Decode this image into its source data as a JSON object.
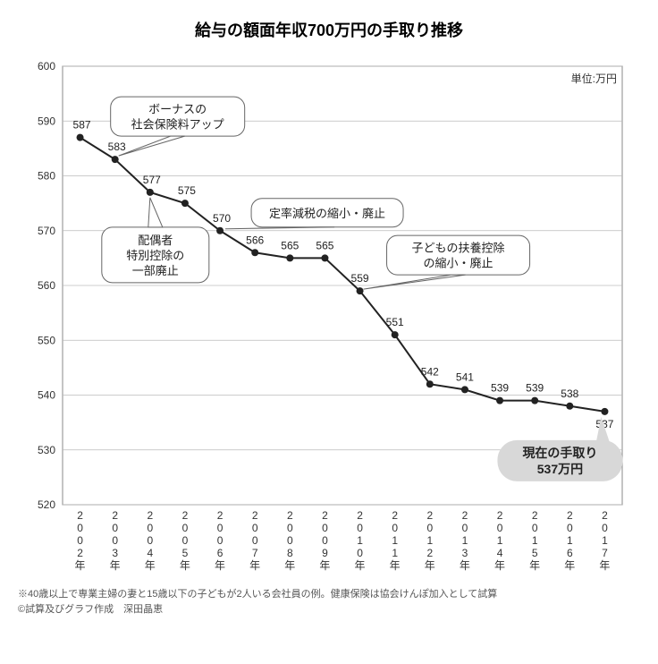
{
  "chart": {
    "type": "line",
    "title": "給与の額面年収700万円の手取り推移",
    "title_fontsize": 18,
    "unit_label": "単位:万円",
    "categories": [
      "2002年",
      "2003年",
      "2004年",
      "2005年",
      "2006年",
      "2007年",
      "2008年",
      "2009年",
      "2010年",
      "2011年",
      "2012年",
      "2013年",
      "2014年",
      "2015年",
      "2016年",
      "2017年"
    ],
    "values": [
      587,
      583,
      577,
      575,
      570,
      566,
      565,
      565,
      559,
      551,
      542,
      541,
      539,
      539,
      538,
      537
    ],
    "ylim": [
      520,
      600
    ],
    "ytick_step": 10,
    "line_color": "#222222",
    "line_width": 2,
    "marker_color": "#222222",
    "marker_radius": 4,
    "background_color": "#ffffff",
    "grid_color": "#bbbbbb",
    "plot_border_color": "#888888",
    "label_fontsize": 12,
    "callouts": [
      {
        "lines": [
          "ボーナスの",
          "社会保険料アップ"
        ],
        "anchor_index": 1
      },
      {
        "lines": [
          "配偶者",
          "特別控除の",
          "一部廃止"
        ],
        "anchor_index": 2
      },
      {
        "lines": [
          "定率減税の縮小・廃止"
        ],
        "anchor_index": 4
      },
      {
        "lines": [
          "子どもの扶養控除",
          "の縮小・廃止"
        ],
        "anchor_index": 8
      }
    ],
    "current_bubble": {
      "lines": [
        "現在の手取り",
        "537万円"
      ],
      "anchor_index": 15
    }
  },
  "footnote": {
    "line1": "※40歳以上で専業主婦の妻と15歳以下の子どもが2人いる会社員の例。健康保険は協会けんぽ加入として試算",
    "line2": "©試算及びグラフ作成　深田晶恵"
  }
}
